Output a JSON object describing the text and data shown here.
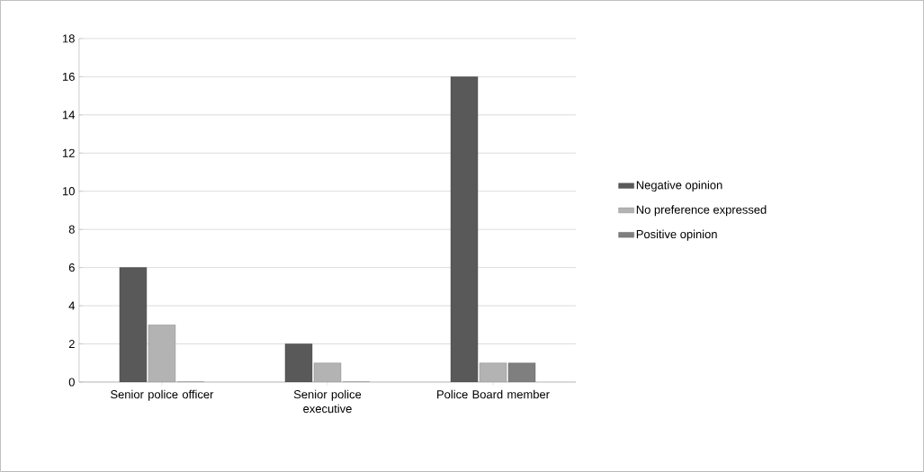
{
  "chart_data": {
    "type": "bar",
    "categories": [
      "Senior police officer",
      "Senior police executive",
      "Police Board member"
    ],
    "series": [
      {
        "name": "Negative opinion",
        "color": "#595959",
        "values": [
          6,
          2,
          16
        ]
      },
      {
        "name": "No preference expressed",
        "color": "#b3b3b3",
        "values": [
          3,
          1,
          1
        ]
      },
      {
        "name": "Positive opinion",
        "color": "#7f7f7f",
        "values": [
          0,
          0,
          1
        ]
      }
    ],
    "ylim": [
      0,
      18
    ],
    "yticks": [
      0,
      2,
      4,
      6,
      8,
      10,
      12,
      14,
      16,
      18
    ],
    "grid": "y",
    "legend": "right"
  }
}
